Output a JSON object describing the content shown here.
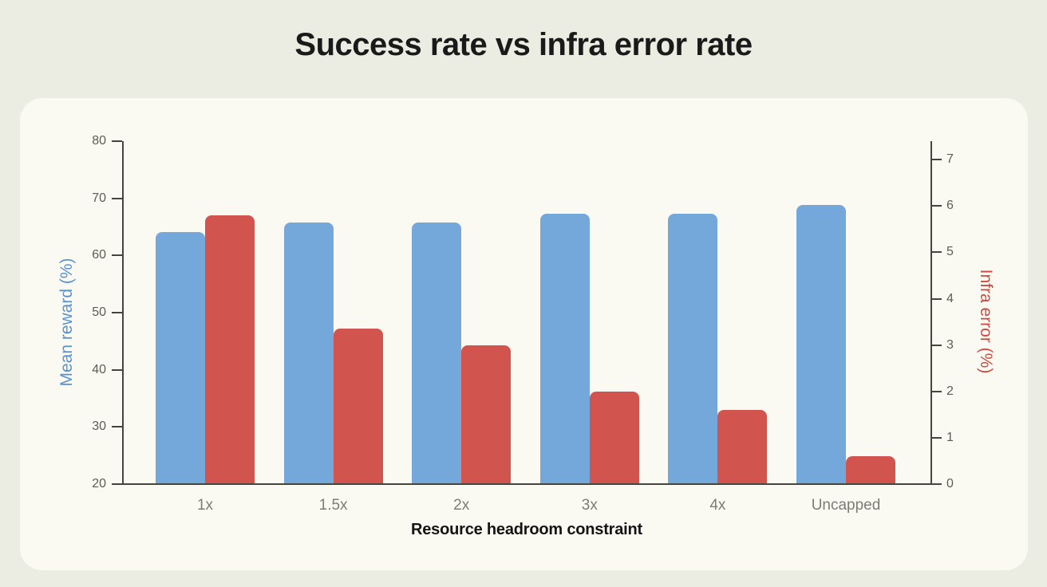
{
  "page": {
    "title": "Success rate vs infra error rate",
    "background": "#ecede2",
    "card_background": "#faf9f2"
  },
  "chart_data": {
    "type": "bar",
    "title": "Success rate vs infra error rate",
    "xlabel": "Resource headroom constraint",
    "categories": [
      "1x",
      "1.5x",
      "2x",
      "3x",
      "4x",
      "Uncapped"
    ],
    "series": [
      {
        "name": "Mean reward (%)",
        "axis": "left",
        "color": "#74a7da",
        "values": [
          64.1,
          65.7,
          65.7,
          67.3,
          67.3,
          68.9
        ]
      },
      {
        "name": "Infra error (%)",
        "axis": "right",
        "color": "#d1554e",
        "values": [
          5.8,
          3.35,
          3.0,
          2.0,
          1.6,
          0.6
        ]
      }
    ],
    "left_axis": {
      "label": "Mean reward (%)",
      "min": 20,
      "max": 80,
      "ticks": [
        20,
        30,
        40,
        50,
        60,
        70,
        80
      ],
      "label_color": "#5792d3"
    },
    "right_axis": {
      "label": "Infra error (%)",
      "min": 0,
      "max": 7.4,
      "ticks": [
        0,
        1,
        2,
        3,
        4,
        5,
        6,
        7
      ],
      "label_color": "#cd4a40"
    },
    "grid": false,
    "legend": "none",
    "tick_label_color": "#5c5c58",
    "category_label_color": "#7c7c75",
    "axis_line_color": "#45453f"
  }
}
